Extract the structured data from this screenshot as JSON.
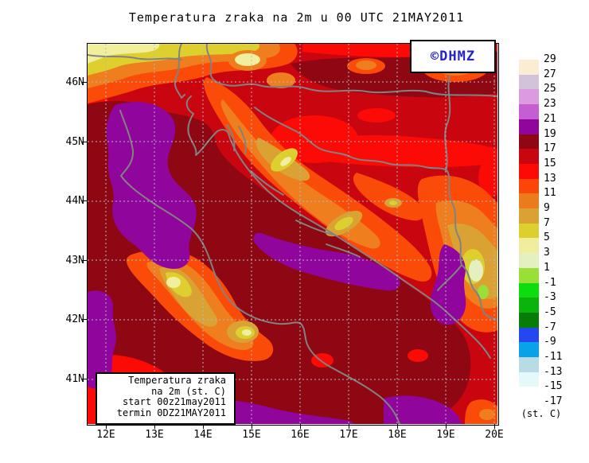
{
  "title": "Temperatura zraka na 2m u 00 UTC 21MAY2011",
  "watermark": {
    "text": "©DHMZ",
    "color": "#2424cf"
  },
  "info_box": {
    "line1": "Temperatura zraka",
    "line2": "na 2m (st. C)",
    "line3": "start 00z21may2011",
    "line4": "termin 0DZ21MAY2011"
  },
  "axes": {
    "lon_labels": [
      "12E",
      "13E",
      "14E",
      "15E",
      "16E",
      "17E",
      "18E",
      "19E",
      "20E"
    ],
    "lat_labels": [
      "46N",
      "45N",
      "44N",
      "43N",
      "42N",
      "41N"
    ]
  },
  "colorbar": {
    "unit_label": "(st. C)",
    "tick_labels": [
      "29",
      "27",
      "25",
      "23",
      "21",
      "19",
      "17",
      "15",
      "13",
      "11",
      "9",
      "7",
      "5",
      "3",
      "1",
      "-1",
      "-3",
      "-5",
      "-7",
      "-9",
      "-11",
      "-13",
      "-15",
      "-17"
    ],
    "colors": [
      "#fcecd4",
      "#d3c3da",
      "#dc9be0",
      "#c55ed0",
      "#90059c",
      "#8e0712",
      "#c9050f",
      "#fb0a06",
      "#fc4607",
      "#eb7c1c",
      "#d9a232",
      "#ddd02e",
      "#f0ee9e",
      "#e5f0c0",
      "#98df36",
      "#0ddd0d",
      "#0bb40b",
      "#077c07",
      "#2547ef",
      "#09a1e8",
      "#b8dbe4",
      "#e4f9fa",
      "#ffffff"
    ]
  },
  "map_view": {
    "variable": "Temperatura zraka na 2m",
    "valid_time": "00 UTC 21MAY2011",
    "lon_extent": [
      "12E",
      "20E"
    ],
    "lat_extent": [
      "41N",
      "46N"
    ],
    "contour_interval_degC": 2,
    "grid_style": "dashed graticule every 1 degree",
    "dominant_colors": {
      "sea_warm": "#90059c",
      "land_warm": "#8e0712",
      "mid": "#c9050f",
      "cool_mountains": "#ddd02e"
    }
  }
}
